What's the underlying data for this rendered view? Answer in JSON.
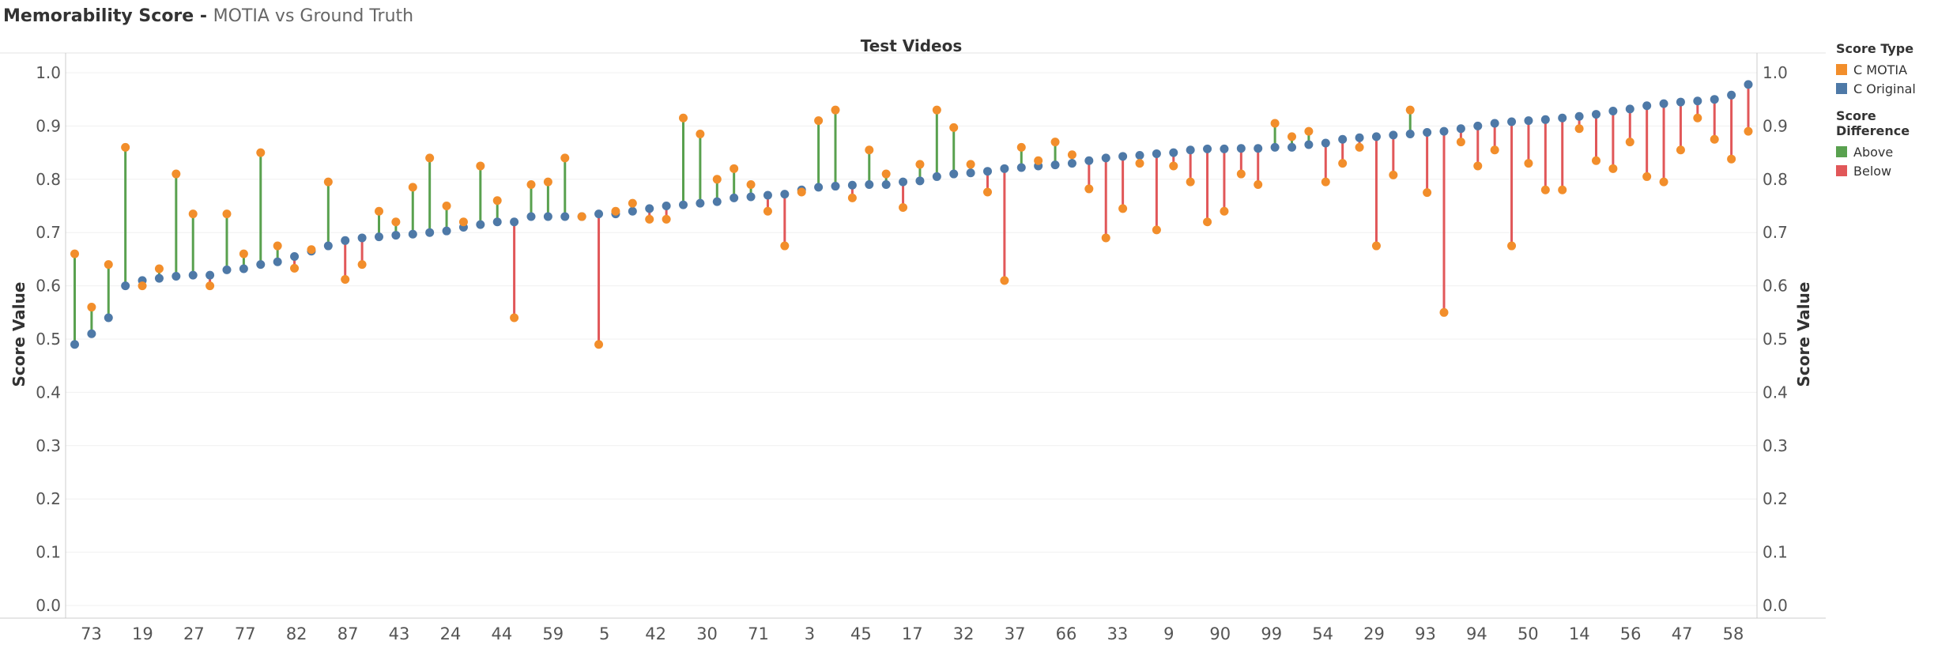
{
  "title": {
    "main": "Memorability Score - ",
    "sub": "MOTIA vs Ground Truth"
  },
  "colors": {
    "motia": "#f28e2b",
    "original": "#4e79a7",
    "above": "#59a14f",
    "below": "#e15759"
  },
  "legend": {
    "score_type": {
      "title": "Score Type",
      "items": [
        "C MOTIA",
        "C Original"
      ]
    },
    "score_difference": {
      "title": "Score Difference",
      "items": [
        "Above",
        "Below"
      ]
    }
  },
  "chart_data": {
    "type": "dot-line",
    "title": "Test Videos",
    "ylabel": "Score Value",
    "ylabel_right": "Score Value",
    "ylim": [
      0,
      1.0
    ],
    "yticks": [
      "0.0",
      "0.1",
      "0.2",
      "0.3",
      "0.4",
      "0.5",
      "0.6",
      "0.7",
      "0.8",
      "0.9",
      "1.0"
    ],
    "x_labels": [
      "73",
      "19",
      "27",
      "77",
      "82",
      "87",
      "43",
      "24",
      "44",
      "59",
      "5",
      "42",
      "30",
      "71",
      "3",
      "45",
      "17",
      "32",
      "37",
      "66",
      "33",
      "9",
      "90",
      "99",
      "54",
      "29",
      "93",
      "94",
      "50",
      "14",
      "56",
      "47",
      "58"
    ],
    "series": [
      {
        "name": "C Original",
        "values": [
          0.49,
          0.51,
          0.54,
          0.6,
          0.61,
          0.614,
          0.618,
          0.62,
          0.62,
          0.63,
          0.632,
          0.64,
          0.645,
          0.655,
          0.665,
          0.675,
          0.685,
          0.69,
          0.692,
          0.695,
          0.697,
          0.7,
          0.703,
          0.71,
          0.715,
          0.72,
          0.72,
          0.73,
          0.73,
          0.73,
          0.73,
          0.735,
          0.735,
          0.74,
          0.745,
          0.75,
          0.752,
          0.755,
          0.758,
          0.765,
          0.767,
          0.77,
          0.772,
          0.78,
          0.785,
          0.787,
          0.789,
          0.79,
          0.79,
          0.795,
          0.797,
          0.805,
          0.81,
          0.812,
          0.815,
          0.82,
          0.822,
          0.825,
          0.827,
          0.83,
          0.835,
          0.84,
          0.843,
          0.845,
          0.848,
          0.85,
          0.855,
          0.857,
          0.857,
          0.858,
          0.858,
          0.86,
          0.86,
          0.865,
          0.868,
          0.875,
          0.878,
          0.88,
          0.883,
          0.885,
          0.888,
          0.89,
          0.895,
          0.9,
          0.905,
          0.908,
          0.91,
          0.912,
          0.915,
          0.918,
          0.922,
          0.928,
          0.932,
          0.938,
          0.942,
          0.945,
          0.947,
          0.95,
          0.958,
          0.978
        ]
      },
      {
        "name": "C MOTIA",
        "values": [
          0.66,
          0.56,
          0.64,
          0.86,
          0.6,
          0.632,
          0.81,
          0.735,
          0.6,
          0.735,
          0.66,
          0.85,
          0.675,
          0.633,
          0.668,
          0.795,
          0.612,
          0.64,
          0.74,
          0.72,
          0.785,
          0.84,
          0.75,
          0.72,
          0.825,
          0.76,
          0.54,
          0.79,
          0.795,
          0.84,
          0.73,
          0.49,
          0.74,
          0.755,
          0.725,
          0.725,
          0.915,
          0.885,
          0.8,
          0.82,
          0.79,
          0.74,
          0.675,
          0.776,
          0.91,
          0.93,
          0.765,
          0.855,
          0.81,
          0.747,
          0.828,
          0.93,
          0.897,
          0.828,
          0.776,
          0.61,
          0.86,
          0.835,
          0.87,
          0.846,
          0.782,
          0.69,
          0.745,
          0.83,
          0.705,
          0.825,
          0.795,
          0.72,
          0.74,
          0.81,
          0.79,
          0.905,
          0.88,
          0.89,
          0.795,
          0.83,
          0.86,
          0.675,
          0.808,
          0.93,
          0.775,
          0.55,
          0.87,
          0.825,
          0.855,
          0.675,
          0.83,
          0.78,
          0.78,
          0.895,
          0.835,
          0.82,
          0.87,
          0.805,
          0.795,
          0.855,
          0.915,
          0.875,
          0.838,
          0.89
        ]
      }
    ]
  }
}
